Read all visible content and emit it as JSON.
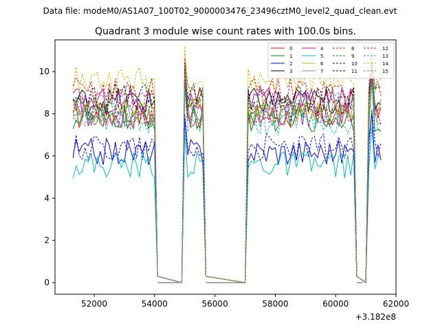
{
  "chart_data": {
    "type": "line",
    "suptitle": "Data file: modeM0/AS1A07_100T02_9000003476_23496cztM0_level2_quad_clean.evt",
    "title": "Quadrant 3 module wise count rates with 100.0s bins.",
    "xlabel": "",
    "ylabel": "",
    "x_offset_label": "+3.182e8",
    "xlim": [
      50700,
      62000
    ],
    "ylim": [
      -0.55,
      11.5
    ],
    "xticks": [
      52000,
      54000,
      56000,
      58000,
      60000,
      62000
    ],
    "xtick_labels": [
      "52000",
      "54000",
      "56000",
      "58000",
      "60000",
      "62000"
    ],
    "yticks": [
      0,
      2,
      4,
      6,
      8,
      10
    ],
    "ytick_labels": [
      "0",
      "2",
      "4",
      "6",
      "8",
      "10"
    ],
    "grid": false,
    "legend_location": "top-right",
    "legend_columns": 4,
    "x_segments": [
      [
        51300,
        54000
      ],
      [
        55000,
        55600
      ],
      [
        57100,
        60600
      ],
      [
        61100,
        61500
      ]
    ],
    "gaps": [
      [
        54100,
        54800
      ],
      [
        55700,
        57000
      ],
      [
        60700,
        60900
      ]
    ],
    "series": [
      {
        "name": "0",
        "color": "#ff0000",
        "dash": "solid",
        "level": 7.9
      },
      {
        "name": "1",
        "color": "#008000",
        "dash": "solid",
        "level": 7.8
      },
      {
        "name": "2",
        "color": "#0000ff",
        "dash": "solid",
        "level": 6.2
      },
      {
        "name": "3",
        "color": "#000000",
        "dash": "solid",
        "level": 8.6
      },
      {
        "name": "4",
        "color": "#bf00bf",
        "dash": "solid",
        "level": 8.6
      },
      {
        "name": "5",
        "color": "#00bfbf",
        "dash": "solid",
        "level": 5.6
      },
      {
        "name": "6",
        "color": "#bfbf00",
        "dash": "solid",
        "level": 8.1
      },
      {
        "name": "7",
        "color": "#808080",
        "dash": "solid",
        "level": 8.0
      },
      {
        "name": "8",
        "color": "#ff0000",
        "dash": "dashed",
        "level": 9.1
      },
      {
        "name": "9",
        "color": "#008000",
        "dash": "dashed",
        "level": 8.2
      },
      {
        "name": "10",
        "color": "#0000ff",
        "dash": "dashed",
        "level": 6.4
      },
      {
        "name": "11",
        "color": "#000000",
        "dash": "dashed",
        "level": 8.8
      },
      {
        "name": "12",
        "color": "#bf00bf",
        "dash": "dashed",
        "level": 8.0
      },
      {
        "name": "13",
        "color": "#00bfbf",
        "dash": "dashed",
        "level": 7.6
      },
      {
        "name": "14",
        "color": "#bfbf00",
        "dash": "dashed",
        "level": 9.6
      },
      {
        "name": "15",
        "color": "#808080",
        "dash": "dashed",
        "level": 8.4
      }
    ]
  }
}
